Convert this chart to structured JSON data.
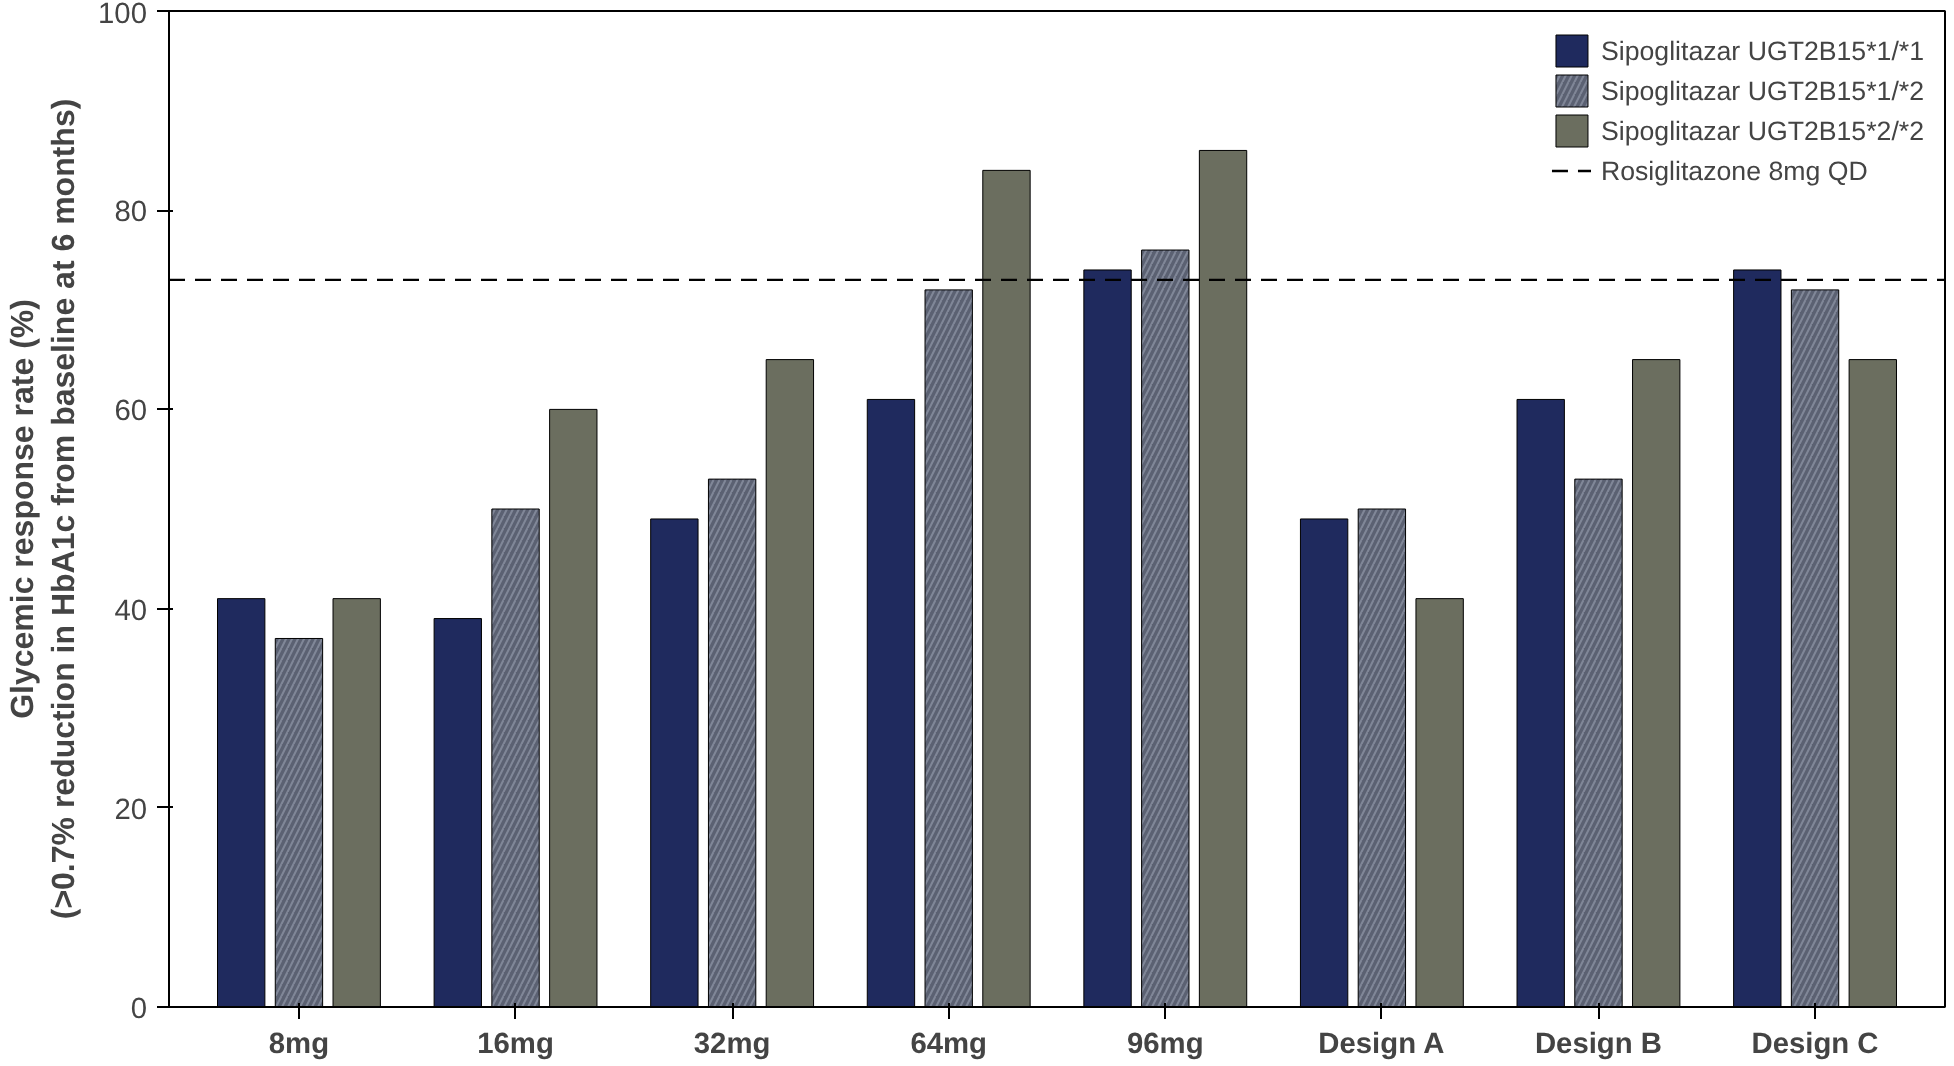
{
  "chart_data": {
    "type": "bar",
    "ylabel": "Glycemic response rate (%)\n(>0.7% reduction in HbA1c from baseline at 6 months)",
    "categories": [
      "8mg",
      "16mg",
      "32mg",
      "64mg",
      "96mg",
      "Design A",
      "Design B",
      "Design C"
    ],
    "series": [
      {
        "name": "Sipoglitazar UGT2B15*1/*1",
        "color": "#1f2a5e",
        "values": [
          41,
          39,
          49,
          61,
          74,
          49,
          61,
          74
        ]
      },
      {
        "name": "Sipoglitazar UGT2B15*1/*2",
        "color": "#5b6172",
        "values": [
          37,
          50,
          53,
          72,
          76,
          50,
          53,
          72
        ]
      },
      {
        "name": "Sipoglitazar UGT2B15*2/*2",
        "color": "#6b6e5f",
        "values": [
          41,
          60,
          65,
          84,
          86,
          41,
          65,
          65
        ]
      }
    ],
    "ylim": [
      0,
      100
    ],
    "yticks": [
      0,
      20,
      40,
      60,
      80,
      100
    ],
    "grid": false,
    "legend": "top right",
    "ref_lines": [
      {
        "axis": "y",
        "value": 73,
        "label": "Rosiglitazone 8mg QD",
        "color": "#000000",
        "line_style": "dashed"
      }
    ]
  }
}
